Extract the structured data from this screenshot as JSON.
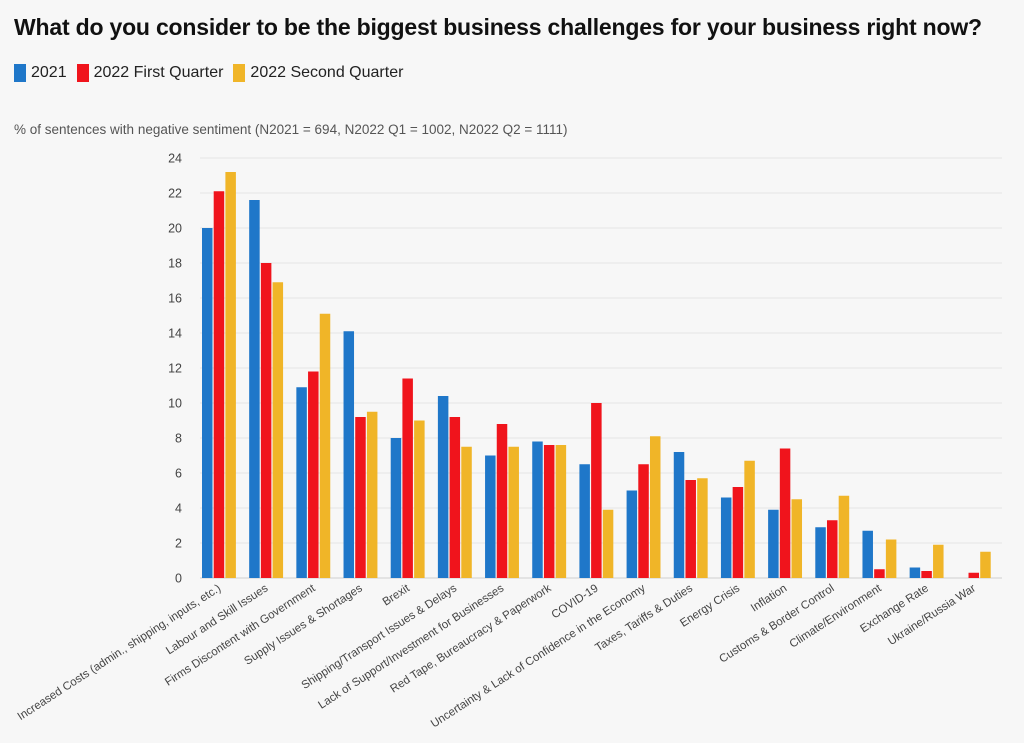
{
  "chart_data": {
    "type": "bar",
    "title": "What do you consider to be the biggest business challenges for your business right now?",
    "subtitle": "% of sentences with negative sentiment (N2021 = 694, N2022 Q1 = 1002, N2022 Q2 = 1111)",
    "categories": [
      "Increased Costs (admin., shipping, inputs, etc.)",
      "Labour and Skill Issues",
      "Firms Discontent with Government",
      "Supply Issues & Shortages",
      "Brexit",
      "Shipping/Transport Issues & Delays",
      "Lack of Support/Investment for Businesses",
      "Red Tape, Bureaucracy & Paperwork",
      "COVID-19",
      "Uncertainty & Lack of Confidence in the Economy",
      "Taxes, Tariffs & Duties",
      "Energy Crisis",
      "Inflation",
      "Customs & Border Control",
      "Climate/Environment",
      "Exchange Rate",
      "Ukraine/Russia War"
    ],
    "series": [
      {
        "name": "2021",
        "color": "#1f77c9",
        "values": [
          20.0,
          21.6,
          10.9,
          14.1,
          8.0,
          10.4,
          7.0,
          7.8,
          6.5,
          5.0,
          7.2,
          4.6,
          3.9,
          2.9,
          2.7,
          0.6,
          0.0
        ]
      },
      {
        "name": "2022 First Quarter",
        "color": "#f0141c",
        "values": [
          22.1,
          18.0,
          11.8,
          9.2,
          11.4,
          9.2,
          8.8,
          7.6,
          10.0,
          6.5,
          5.6,
          5.2,
          7.4,
          3.3,
          0.5,
          0.4,
          0.3
        ]
      },
      {
        "name": "2022 Second Quarter",
        "color": "#f0b528",
        "values": [
          23.2,
          16.9,
          15.1,
          9.5,
          9.0,
          7.5,
          7.5,
          7.6,
          3.9,
          8.1,
          5.7,
          6.7,
          4.5,
          4.7,
          2.2,
          1.9,
          1.5
        ]
      }
    ],
    "ylim": [
      0,
      24
    ],
    "yticks": [
      0,
      2,
      4,
      6,
      8,
      10,
      12,
      14,
      16,
      18,
      20,
      22,
      24
    ],
    "grid": true,
    "legend_position": "top-left"
  }
}
